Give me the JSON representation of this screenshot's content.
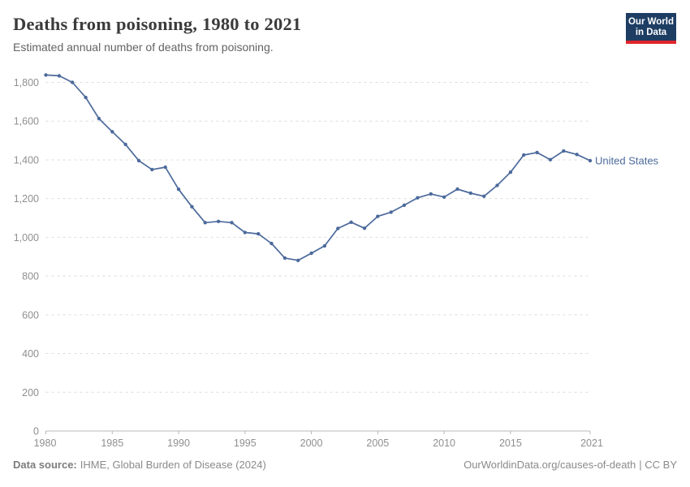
{
  "header": {
    "title": "Deaths from poisoning, 1980 to 2021",
    "subtitle": "Estimated annual number of deaths from poisoning.",
    "logo": {
      "line1": "Our World",
      "line2": "in Data",
      "bg_color": "#1d3d63",
      "bar_color": "#e0242c"
    }
  },
  "chart_data": {
    "type": "line",
    "title": "Deaths from poisoning, 1980 to 2021",
    "xlabel": "",
    "ylabel": "",
    "xlim": [
      1980,
      2021
    ],
    "ylim": [
      0,
      1800
    ],
    "grid": "horizontal-dashed",
    "legend_position": "end-of-line-label",
    "x_ticks": [
      1980,
      1985,
      1990,
      1995,
      2000,
      2005,
      2010,
      2015,
      2021
    ],
    "y_ticks": [
      0,
      200,
      400,
      600,
      800,
      1000,
      1200,
      1400,
      1600,
      1800
    ],
    "y_tick_labels": [
      "0",
      "200",
      "400",
      "600",
      "800",
      "1,000",
      "1,200",
      "1,400",
      "1,600",
      "1,800"
    ],
    "series": [
      {
        "name": "United States",
        "color": "#4c6a9c",
        "x": [
          1980,
          1981,
          1982,
          1983,
          1984,
          1985,
          1986,
          1987,
          1988,
          1989,
          1990,
          1991,
          1992,
          1993,
          1994,
          1995,
          1996,
          1997,
          1998,
          1999,
          2000,
          2001,
          2002,
          2003,
          2004,
          2005,
          2006,
          2007,
          2008,
          2009,
          2010,
          2011,
          2012,
          2013,
          2014,
          2015,
          2016,
          2017,
          2018,
          2019,
          2020,
          2021
        ],
        "values": [
          1838,
          1834,
          1800,
          1722,
          1613,
          1545,
          1480,
          1396,
          1350,
          1362,
          1248,
          1158,
          1076,
          1082,
          1076,
          1025,
          1018,
          968,
          893,
          881,
          918,
          956,
          1046,
          1078,
          1047,
          1108,
          1130,
          1166,
          1204,
          1224,
          1208,
          1249,
          1228,
          1212,
          1268,
          1336,
          1425,
          1438,
          1401,
          1446,
          1428,
          1396
        ]
      }
    ]
  },
  "footer": {
    "source_label": "Data source:",
    "source_value": "IHME, Global Burden of Disease (2024)",
    "credit_link": "OurWorldinData.org/causes-of-death",
    "credit_rest": "| CC BY"
  }
}
